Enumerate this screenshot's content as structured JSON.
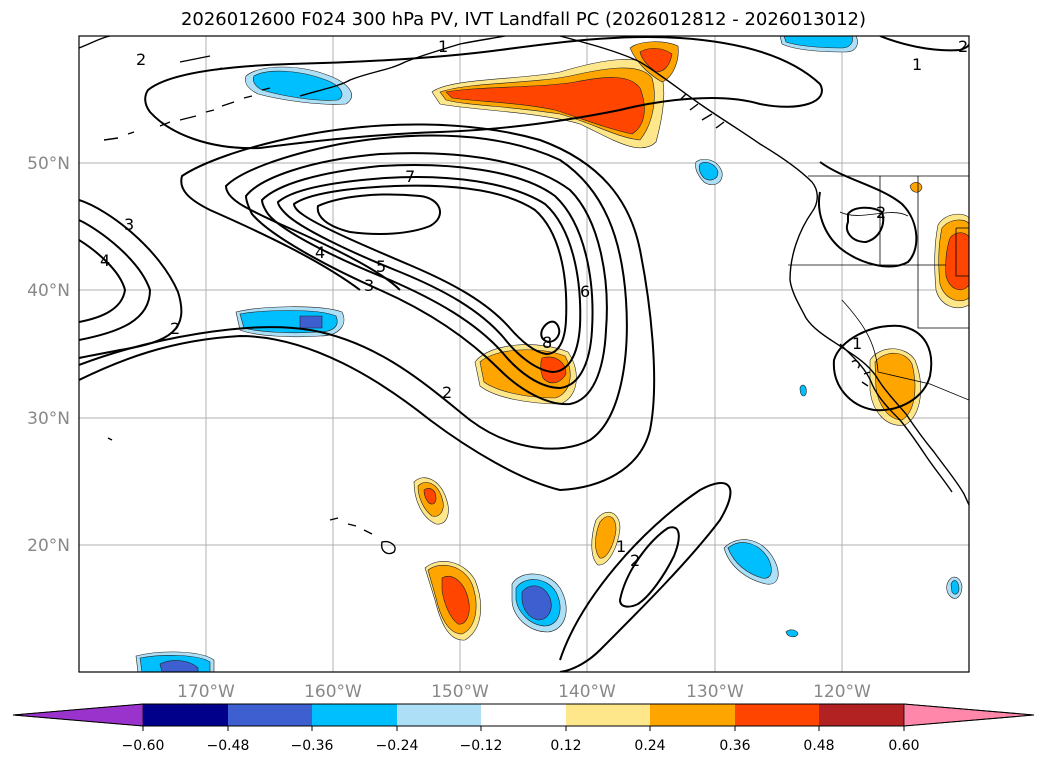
{
  "title": "2026012600 F024 300 hPa PV, IVT Landfall PC (2026012812 - 2026013012)",
  "map": {
    "lon_range": [
      -180,
      -110
    ],
    "lat_range": [
      10,
      60
    ],
    "lat_ticks": [
      "50°N",
      "40°N",
      "30°N",
      "20°N"
    ],
    "lon_ticks": [
      "170°W",
      "160°W",
      "150°W",
      "140°W",
      "130°W",
      "120°W"
    ],
    "grid": true,
    "pv_contour_labels": [
      "2",
      "4",
      "3",
      "2",
      "7",
      "4",
      "5",
      "3",
      "2",
      "6",
      "8",
      "1",
      "2",
      "1",
      "2",
      "1",
      "2",
      "1"
    ]
  },
  "colorbar": {
    "extend": "both",
    "colors": [
      "#9933cc",
      "#00008b",
      "#3d5fcf",
      "#00bfff",
      "#ade0f7",
      "#ffffff",
      "#fde78a",
      "#ffa500",
      "#ff4500",
      "#b22222",
      "#ff88aa"
    ],
    "tick_labels": [
      "−0.60",
      "−0.48",
      "−0.36",
      "−0.24",
      "−0.12",
      "0.12",
      "0.24",
      "0.36",
      "0.48",
      "0.60"
    ]
  }
}
